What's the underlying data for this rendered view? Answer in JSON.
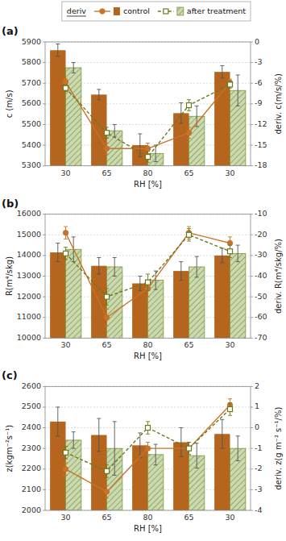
{
  "chart_data": [
    {
      "type": "bar",
      "title": "(a)",
      "xlabel": "RH [%]",
      "ylabel": "c (m/s)",
      "y2label": "deriv. c(m/s/%)",
      "categories": [
        "30",
        "65",
        "80",
        "65",
        "30"
      ],
      "ylim": [
        5300,
        5900
      ],
      "yticks": [
        5300,
        5400,
        5500,
        5600,
        5700,
        5800,
        5900
      ],
      "y2lim": [
        -18,
        0
      ],
      "y2ticks": [
        -18,
        -15,
        -12,
        -9,
        -6,
        -3,
        0
      ],
      "grid": true,
      "legend": "upper right",
      "annotations": [
        {
          "text": "deriv"
        }
      ],
      "series": [
        {
          "name": "control",
          "type": "bar",
          "color": "#b5651d",
          "values": [
            5860,
            5645,
            5400,
            5555,
            5755
          ],
          "errors": [
            30,
            25,
            55,
            50,
            30
          ]
        },
        {
          "name": "after treatment",
          "type": "bar",
          "color": "#6b8e23",
          "values": [
            5775,
            5470,
            5360,
            5540,
            5665
          ],
          "errors": [
            25,
            30,
            40,
            50,
            75
          ]
        },
        {
          "name": "control",
          "type": "line",
          "axis": "y2",
          "color": "#c8732a",
          "marker": "circle",
          "line_style": "solid",
          "values": [
            -5.8,
            -15.5,
            -15.5,
            -13.2,
            -5.9
          ],
          "errors": [
            0.5,
            0.8,
            0.8,
            0.8,
            0.5
          ]
        },
        {
          "name": "after treatment",
          "type": "line",
          "axis": "y2",
          "color": "#6b7a1e",
          "marker": "square",
          "line_style": "dashed",
          "values": [
            -6.7,
            -13.2,
            -16.7,
            -9.2,
            -6.2
          ],
          "errors": [
            0.5,
            0.8,
            0.8,
            0.8,
            0.5
          ]
        }
      ]
    },
    {
      "type": "bar",
      "title": "(b)",
      "xlabel": "RH [%]",
      "ylabel": "R(m⁴/skg)",
      "y2label": "deriv. R(m⁴/skg/%)",
      "categories": [
        "30",
        "65",
        "80",
        "65",
        "30"
      ],
      "ylim": [
        10000,
        16000
      ],
      "yticks": [
        10000,
        11000,
        12000,
        13000,
        14000,
        15000,
        16000
      ],
      "y2lim": [
        -70,
        -10
      ],
      "y2ticks": [
        -70,
        -60,
        -50,
        -40,
        -30,
        -20,
        -10
      ],
      "grid": true,
      "series": [
        {
          "type": "bar",
          "color": "#b5651d",
          "values": [
            14150,
            13500,
            12650,
            13250,
            14000
          ],
          "errors": [
            450,
            400,
            350,
            450,
            350
          ]
        },
        {
          "type": "bar",
          "color": "#6b8e23",
          "values": [
            14300,
            13450,
            12800,
            13450,
            14100
          ],
          "errors": [
            600,
            450,
            450,
            500,
            400
          ]
        },
        {
          "type": "line",
          "axis": "y2",
          "color": "#c8732a",
          "marker": "circle",
          "line_style": "solid",
          "values": [
            -19,
            -60,
            -46,
            -19,
            -24
          ],
          "errors": [
            3,
            4,
            4,
            3,
            3
          ]
        },
        {
          "type": "line",
          "axis": "y2",
          "color": "#6b7a1e",
          "marker": "square",
          "line_style": "dashed",
          "values": [
            -29,
            -50,
            -43,
            -20,
            -28
          ],
          "errors": [
            3,
            4,
            4,
            3,
            3
          ]
        }
      ]
    },
    {
      "type": "bar",
      "title": "(c)",
      "xlabel": "RH [%]",
      "ylabel": "z(kgm⁻²s⁻¹)",
      "y2label": "deriv. z(g m⁻² s⁻¹/%)",
      "categories": [
        "30",
        "65",
        "80",
        "65",
        "30"
      ],
      "ylim": [
        2000,
        2600
      ],
      "yticks": [
        2000,
        2100,
        2200,
        2300,
        2400,
        2500,
        2600
      ],
      "y2lim": [
        -4,
        2
      ],
      "y2ticks": [
        -4,
        -3,
        -2,
        -1,
        0,
        1,
        2
      ],
      "grid": true,
      "series": [
        {
          "type": "bar",
          "color": "#b5651d",
          "values": [
            2430,
            2365,
            2315,
            2330,
            2370
          ],
          "errors": [
            70,
            80,
            60,
            70,
            70
          ]
        },
        {
          "type": "bar",
          "color": "#6b8e23",
          "values": [
            2340,
            2300,
            2270,
            2265,
            2300
          ],
          "errors": [
            40,
            130,
            50,
            60,
            60
          ]
        },
        {
          "type": "line",
          "axis": "y2",
          "color": "#c8732a",
          "marker": "circle",
          "line_style": "solid",
          "values": [
            -2.0,
            -3.1,
            -1.0,
            -1.0,
            1.1
          ],
          "errors": [
            0.3,
            0.3,
            0.3,
            0.3,
            0.3
          ]
        },
        {
          "type": "line",
          "axis": "y2",
          "color": "#6b7a1e",
          "marker": "square",
          "line_style": "dashed",
          "values": [
            -1.2,
            -2.1,
            0.0,
            -1.0,
            0.9
          ],
          "errors": [
            0.3,
            0.3,
            0.3,
            0.3,
            0.3
          ]
        }
      ]
    }
  ]
}
